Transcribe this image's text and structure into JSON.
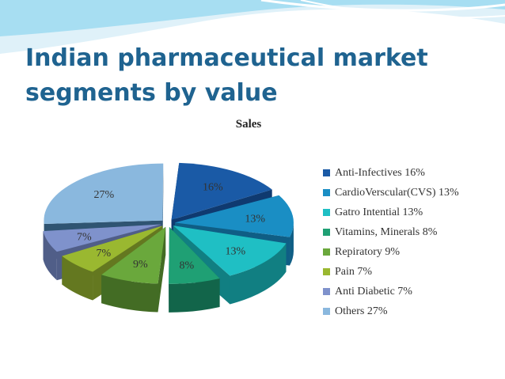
{
  "title": "Indian pharmaceutical market segments by value",
  "colors": {
    "title": "#1f6390",
    "wave_light": "#cfeaf6",
    "wave_mid": "#8fd3ee"
  },
  "chart_data": {
    "type": "pie",
    "style": "3d-exploded",
    "title": "Sales",
    "legend_placement": "right",
    "slices": [
      {
        "label": "Anti-Infectives",
        "value": 16,
        "display": "16%",
        "color": "#1a5aa6",
        "side": "#0f3a70"
      },
      {
        "label": "CardioVerscular(CVS)",
        "value": 13,
        "display": "13%",
        "color": "#1a8ec4",
        "side": "#0f5e85"
      },
      {
        "label": "Gatro Intential",
        "value": 13,
        "display": "13%",
        "color": "#1fbfc4",
        "side": "#117f82"
      },
      {
        "label": "Vitamins, Minerals",
        "value": 8,
        "display": "8%",
        "color": "#1fa074",
        "side": "#12654a"
      },
      {
        "label": "Repiratory",
        "value": 9,
        "display": "9%",
        "color": "#6aa83c",
        "side": "#436c24"
      },
      {
        "label": "Pain",
        "value": 7,
        "display": "7%",
        "color": "#9ab830",
        "side": "#647820"
      },
      {
        "label": "Anti Diabetic",
        "value": 7,
        "display": "7%",
        "color": "#7f92cc",
        "side": "#505e88"
      },
      {
        "label": "Others",
        "value": 27,
        "display": "27%",
        "color": "#8ab8de",
        "side": "#2f5472"
      }
    ]
  }
}
